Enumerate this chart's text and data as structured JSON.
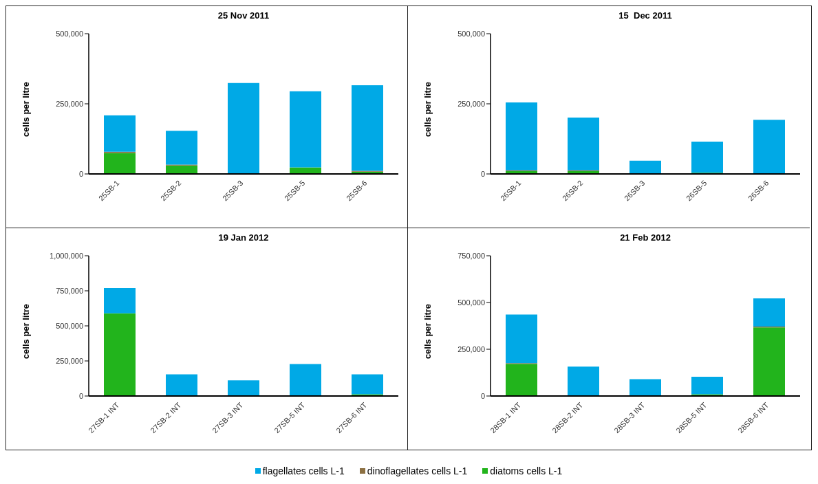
{
  "chart_data": [
    {
      "type": "bar",
      "title": "25 Nov 2011",
      "ylabel": "cells per litre",
      "stacked": true,
      "legend": "bottom",
      "categories": [
        "25SB-1",
        "25SB-2",
        "25SB-3",
        "25SB-5",
        "25SB-6"
      ],
      "ylim": [
        0,
        500000
      ],
      "yticks": [
        {
          "value": 0,
          "label": "0"
        },
        {
          "value": 250000,
          "label": "250,000"
        },
        {
          "value": 500000,
          "label": "500,000"
        }
      ],
      "series": [
        {
          "name": "diatoms cells L-1",
          "color": "#22b41c",
          "values": [
            75000,
            30000,
            0,
            23000,
            8000
          ]
        },
        {
          "name": "dinoflagellates cells L-1",
          "color": "#8c7042",
          "values": [
            4000,
            3000,
            0,
            0,
            3000
          ]
        },
        {
          "name": "flagellates cells L-1",
          "color": "#00a9e6",
          "values": [
            130000,
            121000,
            324000,
            272000,
            305000
          ]
        }
      ]
    },
    {
      "type": "bar",
      "title": "15  Dec 2011",
      "ylabel": "cells per litre",
      "stacked": true,
      "legend": "bottom",
      "categories": [
        "26SB-1",
        "26SB-2",
        "26SB-3",
        "26SB-5",
        "26SB-6"
      ],
      "ylim": [
        0,
        500000
      ],
      "yticks": [
        {
          "value": 0,
          "label": "0"
        },
        {
          "value": 250000,
          "label": "250,000"
        },
        {
          "value": 500000,
          "label": "500,000"
        }
      ],
      "series": [
        {
          "name": "diatoms cells L-1",
          "color": "#22b41c",
          "values": [
            10000,
            10000,
            0,
            4000,
            0
          ]
        },
        {
          "name": "dinoflagellates cells L-1",
          "color": "#8c7042",
          "values": [
            3000,
            3000,
            0,
            0,
            0
          ]
        },
        {
          "name": "flagellates cells L-1",
          "color": "#00a9e6",
          "values": [
            242000,
            188000,
            47000,
            111000,
            193000
          ]
        }
      ]
    },
    {
      "type": "bar",
      "title": "19 Jan 2012",
      "ylabel": "cells per litre",
      "stacked": true,
      "legend": "bottom",
      "categories": [
        "27SB-1 INT",
        "27SB-2 INT",
        "27SB-3 INT",
        "27SB-5 INT",
        "27SB-6 INT"
      ],
      "ylim": [
        0,
        1000000
      ],
      "yticks": [
        {
          "value": 0,
          "label": "0"
        },
        {
          "value": 250000,
          "label": "250,000"
        },
        {
          "value": 500000,
          "label": "500,000"
        },
        {
          "value": 750000,
          "label": "750,000"
        },
        {
          "value": 1000000,
          "label": "1,000,000"
        }
      ],
      "series": [
        {
          "name": "diatoms cells L-1",
          "color": "#22b41c",
          "values": [
            589000,
            0,
            0,
            3000,
            12000
          ]
        },
        {
          "name": "dinoflagellates cells L-1",
          "color": "#8c7042",
          "values": [
            0,
            0,
            0,
            0,
            0
          ]
        },
        {
          "name": "flagellates cells L-1",
          "color": "#00a9e6",
          "values": [
            181000,
            154000,
            111000,
            225000,
            142000
          ]
        }
      ]
    },
    {
      "type": "bar",
      "title": "21 Feb 2012",
      "ylabel": "cells per litre",
      "stacked": true,
      "legend": "bottom",
      "categories": [
        "28SB-1 INT",
        "28SB-2 INT",
        "28SB-3 INT",
        "28SB-5 INT",
        "28SB-6 INT"
      ],
      "ylim": [
        0,
        750000
      ],
      "yticks": [
        {
          "value": 0,
          "label": "0"
        },
        {
          "value": 250000,
          "label": "250,000"
        },
        {
          "value": 500000,
          "label": "500,000"
        },
        {
          "value": 750000,
          "label": "750,000"
        }
      ],
      "series": [
        {
          "name": "diatoms cells L-1",
          "color": "#22b41c",
          "values": [
            172000,
            0,
            0,
            9000,
            367000
          ]
        },
        {
          "name": "dinoflagellates cells L-1",
          "color": "#8c7042",
          "values": [
            4000,
            0,
            0,
            0,
            4000
          ]
        },
        {
          "name": "flagellates cells L-1",
          "color": "#00a9e6",
          "values": [
            260000,
            157000,
            90000,
            94000,
            151000
          ]
        }
      ]
    }
  ]
}
